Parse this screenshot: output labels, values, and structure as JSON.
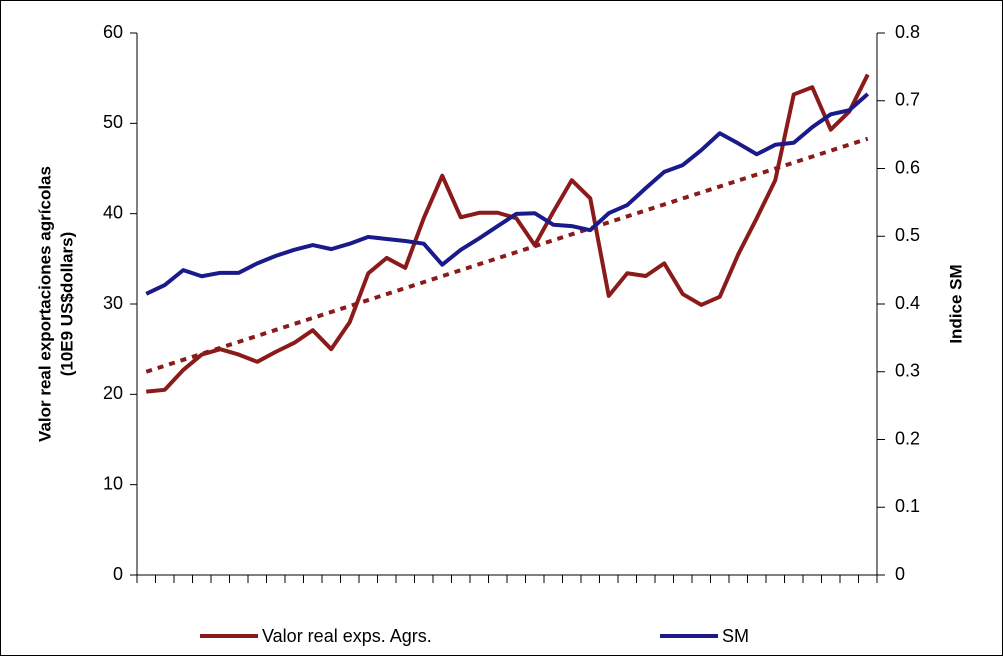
{
  "chart_data": {
    "type": "line",
    "ylabel": [
      "Valor real exportaciones agrícolas",
      "(10E9 US$dollars)"
    ],
    "y2label": "Indice SM",
    "categories": [
      null,
      null,
      null,
      null,
      null,
      null,
      null,
      null,
      null,
      null,
      null,
      null,
      null,
      null,
      null,
      null,
      null,
      null,
      null,
      null,
      null,
      null,
      null,
      null,
      null,
      null,
      null,
      null,
      null,
      null,
      null,
      null,
      null,
      null,
      null,
      null,
      null,
      null,
      null,
      null
    ],
    "series": [
      {
        "name": "Valor real exps. Agrs.",
        "color": "#8b1a1a",
        "values": [
          20.3,
          20.5,
          22.7,
          24.4,
          25,
          24.4,
          23.6,
          24.7,
          25.7,
          27.1,
          25,
          28,
          33.4,
          35.1,
          34,
          39.5,
          44.2,
          39.6,
          40.1,
          40.1,
          39.5,
          36.5,
          40.2,
          43.7,
          41.7,
          30.9,
          33.4,
          33.1,
          34.5,
          31.1,
          29.9,
          30.8,
          35.5,
          39.5,
          43.7,
          53.2,
          54,
          49.3,
          51.3,
          55.4
        ]
      },
      {
        "name": "SM",
        "color": "#1a1a8b",
        "axis": "y2",
        "values": [
          0.415,
          0.428,
          0.45,
          0.441,
          0.446,
          0.446,
          0.46,
          0.471,
          0.48,
          0.487,
          0.481,
          0.489,
          0.499,
          0.496,
          0.493,
          0.489,
          0.458,
          0.48,
          0.497,
          0.515,
          0.533,
          0.534,
          0.517,
          0.515,
          0.509,
          0.534,
          0.546,
          0.571,
          0.595,
          0.605,
          0.627,
          0.652,
          0.637,
          0.621,
          0.635,
          0.638,
          0.661,
          0.68,
          0.686,
          0.71
        ]
      }
    ],
    "trendline": {
      "color": "#8b1a1a",
      "values": [
        22.5,
        48.3
      ]
    },
    "ylim": [
      0,
      60
    ],
    "yticks": [
      0,
      10,
      20,
      30,
      40,
      50,
      60
    ],
    "y2lim": [
      0,
      0.8
    ],
    "y2ticks": [
      0,
      0.1,
      0.2,
      0.3,
      0.4,
      0.5,
      0.6,
      0.7,
      0.8
    ],
    "legend": "bottom"
  }
}
